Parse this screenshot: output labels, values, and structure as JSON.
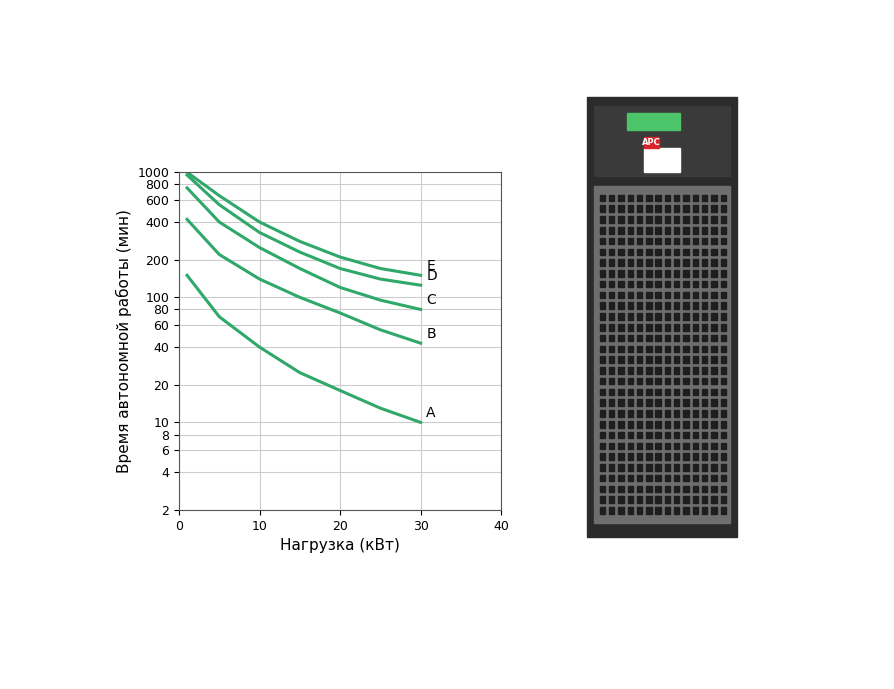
{
  "chart_data": {
    "type": "line",
    "xlabel": "Нагрузка (кВт)",
    "ylabel": "Время автономной работы (мин)",
    "x": [
      1,
      5,
      10,
      15,
      20,
      25,
      30
    ],
    "series": [
      {
        "name": "A",
        "color": "#2fa86a",
        "values": [
          150,
          70,
          40,
          25,
          18,
          13,
          10
        ]
      },
      {
        "name": "B",
        "color": "#2fa86a",
        "values": [
          420,
          220,
          140,
          100,
          75,
          55,
          43
        ]
      },
      {
        "name": "C",
        "color": "#2fa86a",
        "values": [
          750,
          400,
          250,
          170,
          120,
          95,
          80
        ]
      },
      {
        "name": "D",
        "color": "#2fa86a",
        "values": [
          950,
          550,
          330,
          230,
          170,
          140,
          125
        ]
      },
      {
        "name": "E",
        "color": "#2fa86a",
        "values": [
          1000,
          650,
          400,
          280,
          210,
          170,
          150
        ]
      }
    ],
    "xlim": [
      0,
      40
    ],
    "xticks": [
      0,
      10,
      20,
      30,
      40
    ],
    "ylim": [
      2,
      1000
    ],
    "yticks": [
      2,
      4,
      6,
      8,
      10,
      20,
      40,
      60,
      80,
      100,
      200,
      400,
      600,
      800,
      1000
    ],
    "log": "y",
    "grid": true,
    "annotations": [
      "APC"
    ]
  }
}
